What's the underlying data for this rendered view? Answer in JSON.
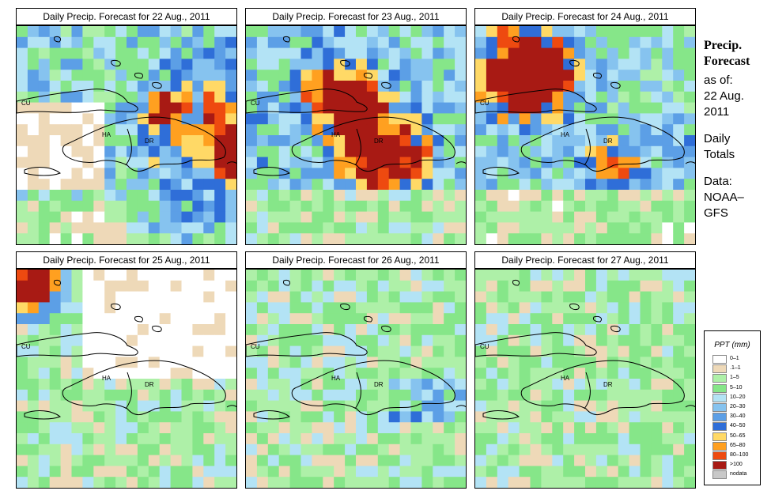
{
  "panels": [
    {
      "title": "Daily Precip. Forecast for  22 Aug., 2011",
      "labels": [
        "CU",
        "HA",
        "DR"
      ]
    },
    {
      "title": "Daily Precip. Forecast for  23 Aug., 2011",
      "labels": [
        "CU",
        "HA",
        "DR"
      ]
    },
    {
      "title": "Daily Precip. Forecast for  24 Aug., 2011",
      "labels": [
        "CU",
        "HA",
        "DR"
      ]
    },
    {
      "title": "Daily Precip. Forecast for  25 Aug., 2011",
      "labels": [
        "CU",
        "HA",
        "DR"
      ]
    },
    {
      "title": "Daily Precip. Forecast for  26 Aug., 2011",
      "labels": [
        "CU",
        "HA",
        "DR"
      ]
    },
    {
      "title": "Daily Precip. Forecast for  27 Aug., 2011",
      "labels": [
        "CU",
        "HA",
        "DR"
      ]
    }
  ],
  "sidebar": {
    "title1": "Precip.",
    "title2": "Forecast",
    "as_of": "as of:",
    "date1": "22 Aug.",
    "date2": "2011",
    "daily1": "Daily",
    "daily2": "Totals",
    "data1": "Data:",
    "data2": "NOAA–",
    "data3": "GFS"
  },
  "legend": {
    "title": "PPT (mm)",
    "items": [
      {
        "label": "0–1",
        "color": "#ffffff"
      },
      {
        "label": ".1–1",
        "color": "#eed9b8"
      },
      {
        "label": "1–5",
        "color": "#aef0a8"
      },
      {
        "label": "5–10",
        "color": "#86e689"
      },
      {
        "label": "10–20",
        "color": "#b3e3f5"
      },
      {
        "label": "20–30",
        "color": "#86c3ef"
      },
      {
        "label": "30–40",
        "color": "#5c9fe6"
      },
      {
        "label": "40–50",
        "color": "#2f6ed8"
      },
      {
        "label": "50–65",
        "color": "#ffd966"
      },
      {
        "label": "65–80",
        "color": "#ffa020"
      },
      {
        "label": "80–100",
        "color": "#ee4a10"
      },
      {
        "label": ">100",
        "color": "#a81a14"
      },
      {
        "label": "nodata",
        "color": "#c8c8c8"
      }
    ]
  }
}
